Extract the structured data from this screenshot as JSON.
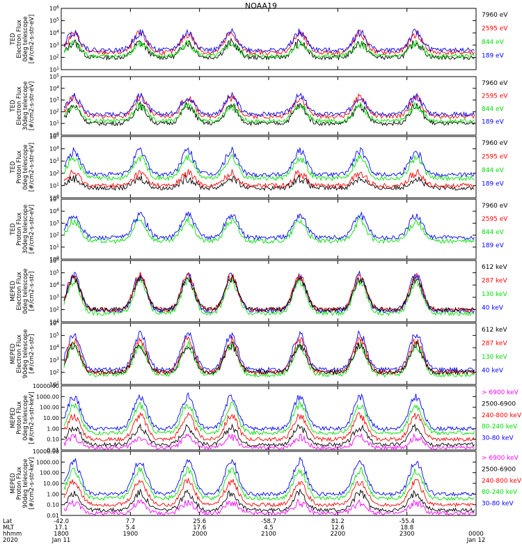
{
  "title": "NOAA19",
  "colors": {
    "black": "#000000",
    "red": "#ff0000",
    "green": "#00e000",
    "blue": "#0000ff",
    "magenta": "#ff00ff",
    "axis": "#000000"
  },
  "time_axis": {
    "row_labels": [
      "Lat",
      "MLT",
      "hhmm",
      "2020"
    ],
    "ticks": [
      {
        "lat": "-42.0",
        "mlt": "17.1",
        "hhmm": "1800",
        "date": "Jan 11"
      },
      {
        "lat": "7.7",
        "mlt": "5.4",
        "hhmm": "1900",
        "date": ""
      },
      {
        "lat": "25.6",
        "mlt": "17.6",
        "hhmm": "2000",
        "date": ""
      },
      {
        "lat": "-58.7",
        "mlt": "4.5",
        "hhmm": "2100",
        "date": ""
      },
      {
        "lat": "81.2",
        "mlt": "12.6",
        "hhmm": "2200",
        "date": ""
      },
      {
        "lat": "-55.4",
        "mlt": "18.8",
        "hhmm": "2300",
        "date": ""
      },
      {
        "lat": "",
        "mlt": "",
        "hhmm": "0000",
        "date": "Jan 12"
      }
    ]
  },
  "chart_data": [
    {
      "type": "line",
      "ylabel_lines": [
        "TED",
        "Electron Flux",
        "0deg telescope",
        "[#/cm2-s-str-eV]"
      ],
      "yticks": [
        "10^1",
        "10^2",
        "10^3",
        "10^4",
        "10^5",
        "10^6"
      ],
      "log": true,
      "legend": [
        {
          "label": "7960 eV",
          "color": "#000000"
        },
        {
          "label": "2595 eV",
          "color": "#ff0000"
        },
        {
          "label": "844 eV",
          "color": "#00e000"
        },
        {
          "label": "189 eV",
          "color": "#0000ff"
        }
      ],
      "series": [
        {
          "color": "#000000",
          "base": 1.0,
          "amp": 1.2
        },
        {
          "color": "#ff0000",
          "base": 1.4,
          "amp": 1.5
        },
        {
          "color": "#00e000",
          "base": 1.1,
          "amp": 1.0
        },
        {
          "color": "#0000ff",
          "base": 1.6,
          "amp": 1.4
        }
      ]
    },
    {
      "type": "line",
      "ylabel_lines": [
        "TED",
        "Electron Flux",
        "30deg telescope",
        "[#/cm2-s-str-eV]"
      ],
      "yticks": [
        "10^0",
        "10^1",
        "10^2",
        "10^3",
        "10^4",
        "10^5"
      ],
      "log": true,
      "legend": [
        {
          "label": "7960 eV",
          "color": "#000000"
        },
        {
          "label": "2595 eV",
          "color": "#ff0000"
        },
        {
          "label": "844 eV",
          "color": "#00e000"
        },
        {
          "label": "189 eV",
          "color": "#0000ff"
        }
      ],
      "series": [
        {
          "color": "#000000",
          "base": 1.0,
          "amp": 1.5
        },
        {
          "color": "#ff0000",
          "base": 1.6,
          "amp": 1.6
        },
        {
          "color": "#00e000",
          "base": 1.2,
          "amp": 1.3
        },
        {
          "color": "#0000ff",
          "base": 1.8,
          "amp": 1.5
        }
      ]
    },
    {
      "type": "line",
      "ylabel_lines": [
        "TED",
        "Proton Flux",
        "0deg telescope",
        "[#/cm2-s-str-eV]"
      ],
      "yticks": [
        "10^0",
        "10^1",
        "10^2",
        "10^3",
        "10^4",
        "10^5"
      ],
      "log": true,
      "legend": [
        {
          "label": "7960 eV",
          "color": "#000000"
        },
        {
          "label": "2595 eV",
          "color": "#ff0000"
        },
        {
          "label": "844 eV",
          "color": "#00e000"
        },
        {
          "label": "189 eV",
          "color": "#0000ff"
        }
      ],
      "series": [
        {
          "color": "#000000",
          "base": 0.8,
          "amp": 0.8
        },
        {
          "color": "#ff0000",
          "base": 1.0,
          "amp": 1.0
        },
        {
          "color": "#00e000",
          "base": 1.6,
          "amp": 1.7
        },
        {
          "color": "#0000ff",
          "base": 1.9,
          "amp": 1.9
        }
      ]
    },
    {
      "type": "line",
      "ylabel_lines": [
        "TED",
        "Proton Flux",
        "30deg telescope",
        "[#/cm2-s-str-eV]"
      ],
      "yticks": [
        "10^0",
        "10^1",
        "10^2",
        "10^3",
        "10^4",
        "10^5"
      ],
      "log": true,
      "legend": [
        {
          "label": "7960 eV",
          "color": "#000000"
        },
        {
          "label": "2595 eV",
          "color": "#ff0000"
        },
        {
          "label": "844 eV",
          "color": "#00e000"
        },
        {
          "label": "189 eV",
          "color": "#0000ff"
        }
      ],
      "series": [
        {
          "color": "#00e000",
          "base": 1.5,
          "amp": 1.7
        },
        {
          "color": "#0000ff",
          "base": 1.8,
          "amp": 1.9
        }
      ]
    },
    {
      "type": "line",
      "ylabel_lines": [
        "MEPED",
        "Electron Flux",
        "0deg telescope",
        "[#/cm2-s-str]"
      ],
      "yticks": [
        "10^1",
        "10^2",
        "10^3",
        "10^4",
        "10^5",
        "10^6"
      ],
      "log": true,
      "legend": [
        {
          "label": "612 keV",
          "color": "#000000"
        },
        {
          "label": "287 keV",
          "color": "#ff0000"
        },
        {
          "label": "130 keV",
          "color": "#00e000"
        },
        {
          "label": "40 keV",
          "color": "#0000ff"
        }
      ],
      "series": [
        {
          "color": "#00e000",
          "base": 0.7,
          "amp": 2.6
        },
        {
          "color": "#0000ff",
          "base": 0.9,
          "amp": 2.9
        },
        {
          "color": "#ff0000",
          "base": 1.0,
          "amp": 2.7
        },
        {
          "color": "#000000",
          "base": 1.0,
          "amp": 2.5
        }
      ]
    },
    {
      "type": "line",
      "ylabel_lines": [
        "MEPED",
        "Electron Flux",
        "90deg telescope",
        "[#/cm2-s-str]"
      ],
      "yticks": [
        "10^1",
        "10^2",
        "10^3",
        "10^4",
        "10^5",
        "10^6"
      ],
      "log": true,
      "legend": [
        {
          "label": "612 keV",
          "color": "#000000"
        },
        {
          "label": "287 keV",
          "color": "#ff0000"
        },
        {
          "label": "130 keV",
          "color": "#00e000"
        },
        {
          "label": "40 keV",
          "color": "#0000ff"
        }
      ],
      "series": [
        {
          "color": "#00e000",
          "base": 0.8,
          "amp": 2.4
        },
        {
          "color": "#0000ff",
          "base": 1.2,
          "amp": 2.9
        },
        {
          "color": "#ff0000",
          "base": 1.0,
          "amp": 2.6
        },
        {
          "color": "#000000",
          "base": 1.0,
          "amp": 2.2
        }
      ]
    },
    {
      "type": "line",
      "ylabel_lines": [
        "MEPED",
        "Proton Flux",
        "0deg telescope",
        "[#/cm2-s-str-keV]"
      ],
      "yticks": [
        "0.01",
        "0.10",
        "1.00",
        "10.00",
        "100.00",
        "1000.00",
        "10000.00"
      ],
      "log": true,
      "legend": [
        {
          "label": "> 6900 keV",
          "color": "#ff00ff"
        },
        {
          "label": "2500-6900",
          "color": "#000000"
        },
        {
          "label": "240-800 keV",
          "color": "#ff0000"
        },
        {
          "label": "80-240 keV",
          "color": "#00e000"
        },
        {
          "label": "30-80 keV",
          "color": "#0000ff"
        }
      ],
      "series": [
        {
          "color": "#ff00ff",
          "base": 0.2,
          "amp": 1.0
        },
        {
          "color": "#000000",
          "base": 0.5,
          "amp": 1.6
        },
        {
          "color": "#ff0000",
          "base": 1.0,
          "amp": 2.2
        },
        {
          "color": "#00e000",
          "base": 1.6,
          "amp": 2.6
        },
        {
          "color": "#0000ff",
          "base": 2.0,
          "amp": 3.0
        }
      ]
    },
    {
      "type": "line",
      "ylabel_lines": [
        "MEPED",
        "Proton Flux",
        "90deg telescope",
        "[#/cm2-s-str-keV]"
      ],
      "yticks": [
        "0.01",
        "0.10",
        "1.00",
        "10.00",
        "100.00",
        "1000.00",
        "10000.00"
      ],
      "log": true,
      "legend": [
        {
          "label": "> 6900 keV",
          "color": "#ff00ff"
        },
        {
          "label": "2500-6900",
          "color": "#000000"
        },
        {
          "label": "240-800 keV",
          "color": "#ff0000"
        },
        {
          "label": "80-240 keV",
          "color": "#00e000"
        },
        {
          "label": "30-80 keV",
          "color": "#0000ff"
        }
      ],
      "series": [
        {
          "color": "#ff00ff",
          "base": 0.2,
          "amp": 1.0
        },
        {
          "color": "#000000",
          "base": 0.5,
          "amp": 1.6
        },
        {
          "color": "#ff0000",
          "base": 1.0,
          "amp": 2.2
        },
        {
          "color": "#00e000",
          "base": 1.6,
          "amp": 2.6
        },
        {
          "color": "#0000ff",
          "base": 2.0,
          "amp": 3.1
        }
      ]
    }
  ]
}
